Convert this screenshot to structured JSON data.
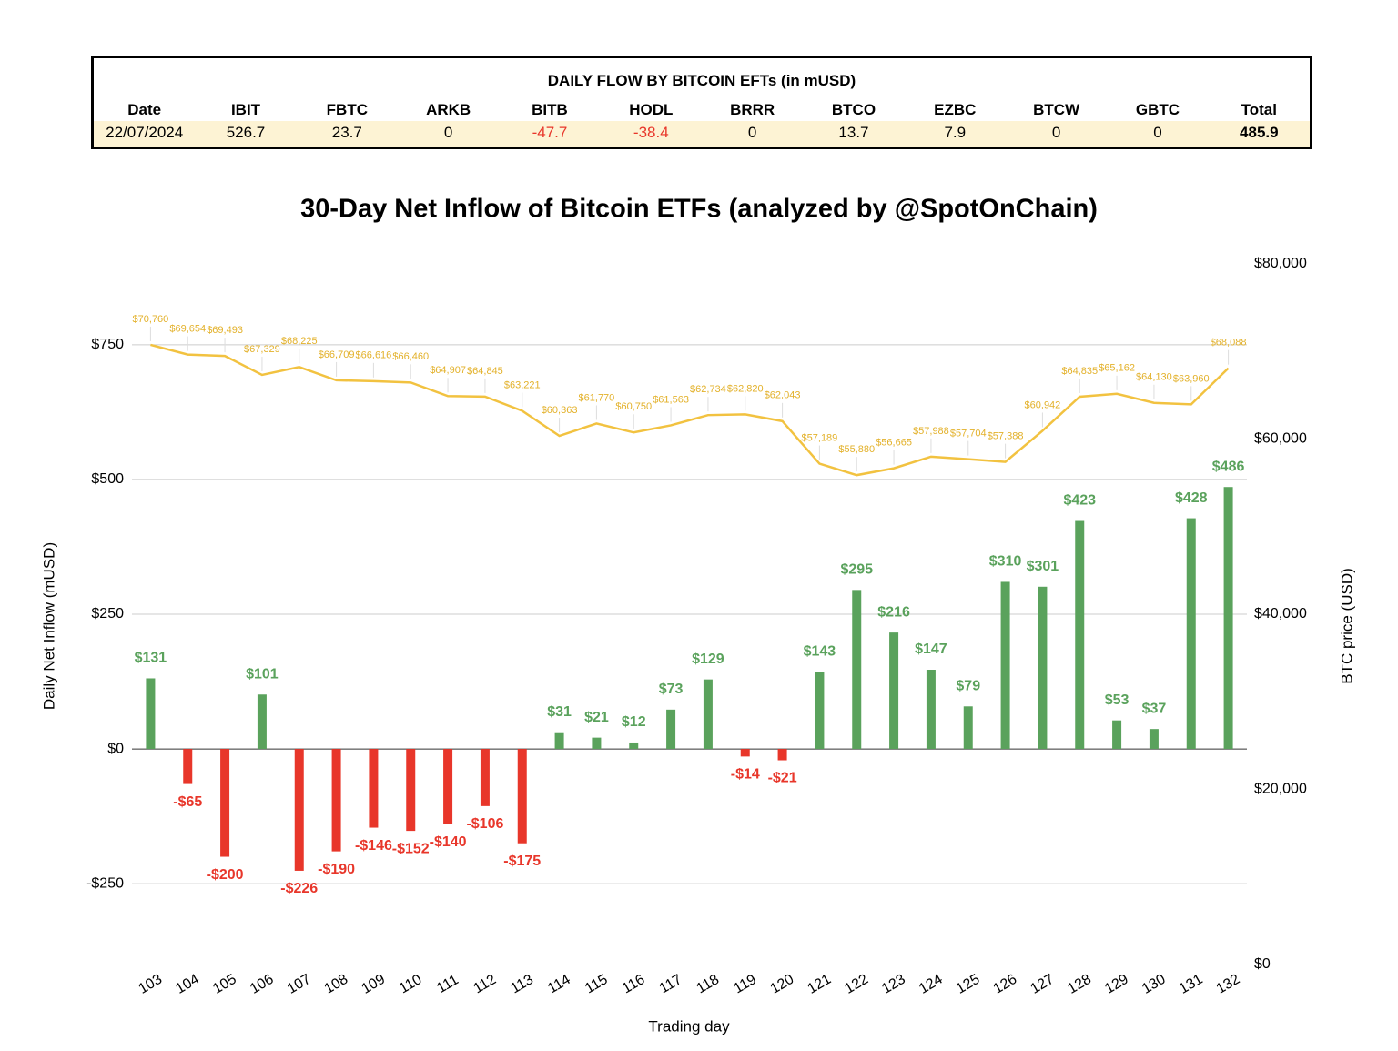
{
  "table": {
    "title": "DAILY FLOW BY BITCOIN EFTs (in mUSD)",
    "headers": [
      "Date",
      "IBIT",
      "FBTC",
      "ARKB",
      "BITB",
      "HODL",
      "BRRR",
      "BTCO",
      "EZBC",
      "BTCW",
      "GBTC",
      "Total"
    ],
    "rows": [
      [
        "22/07/2024",
        526.7,
        23.7,
        0,
        -47.7,
        -38.4,
        0,
        13.7,
        7.9,
        0,
        0,
        485.9
      ]
    ],
    "negative_color": "#e8362a"
  },
  "chart_data": {
    "type": "bar_line",
    "title": "30-Day Net Inflow of Bitcoin ETFs (analyzed by @SpotOnChain)",
    "x_label": "Trading day",
    "y_label": "Daily Net Inflow (mUSD)",
    "y2_label": "BTC price (USD)",
    "categories": [
      "103",
      "104",
      "105",
      "106",
      "107",
      "108",
      "109",
      "110",
      "111",
      "112",
      "113",
      "114",
      "115",
      "116",
      "117",
      "118",
      "119",
      "120",
      "121",
      "122",
      "123",
      "124",
      "125",
      "126",
      "127",
      "128",
      "129",
      "130",
      "131",
      "132"
    ],
    "series": [
      {
        "type": "bar",
        "color": "#5aa25c",
        "negative_color": "#e8362a",
        "values": [
          131,
          -65,
          -200,
          101,
          -226,
          -190,
          -146,
          -152,
          -140,
          -106,
          -175,
          31,
          21,
          12,
          73,
          129,
          -14,
          -21,
          143,
          295,
          216,
          147,
          79,
          310,
          301,
          423,
          53,
          37,
          428,
          486
        ],
        "value_labels": [
          "$131",
          "-$65",
          "-$200",
          "$101",
          "-$226",
          "-$190",
          "-$146",
          "-$152",
          "-$140",
          "-$106",
          "-$175",
          "$31",
          "$21",
          "$12",
          "$73",
          "$129",
          "-$14",
          "-$21",
          "$143",
          "$295",
          "$216",
          "$147",
          "$79",
          "$310",
          "$301",
          "$423",
          "$53",
          "$37",
          "$428",
          "$486"
        ]
      },
      {
        "type": "line",
        "axis": "y2",
        "color": "#f2c240",
        "label_color": "#e3b12a",
        "values": [
          70760,
          69654,
          69493,
          67329,
          68225,
          66709,
          66616,
          66460,
          64907,
          64845,
          63221,
          60363,
          61770,
          60750,
          61563,
          62734,
          62820,
          62043,
          57189,
          55880,
          56665,
          57988,
          57704,
          57388,
          60942,
          64835,
          65162,
          64130,
          63960,
          68088
        ],
        "value_labels": [
          "$70,760",
          "$69,654",
          "$69,493",
          "$67,329",
          "$68,225",
          "$66,709",
          "$66,616",
          "$66,460",
          "$64,907",
          "$64,845",
          "$63,221",
          "$60,363",
          "$61,770",
          "$60,750",
          "$61,563",
          "$62,734",
          "$62,820",
          "$62,043",
          "$57,189",
          "$55,880",
          "$56,665",
          "$57,988",
          "$57,704",
          "$57,388",
          "$60,942",
          "$64,835",
          "$65,162",
          "$64,130",
          "$63,960",
          "$68,088"
        ]
      }
    ],
    "ylim": [
      -400,
      900
    ],
    "yticks": [
      {
        "value": -250,
        "label": "-$250"
      },
      {
        "value": 0,
        "label": "$0"
      },
      {
        "value": 250,
        "label": "$250"
      },
      {
        "value": 500,
        "label": "$500"
      },
      {
        "value": 750,
        "label": "$750"
      }
    ],
    "y2lim": [
      0,
      80000
    ],
    "y2ticks": [
      {
        "value": 0,
        "label": "$0"
      },
      {
        "value": 20000,
        "label": "$20,000"
      },
      {
        "value": 40000,
        "label": "$40,000"
      },
      {
        "value": 60000,
        "label": "$60,000"
      },
      {
        "value": 80000,
        "label": "$80,000"
      }
    ],
    "grid": true
  }
}
